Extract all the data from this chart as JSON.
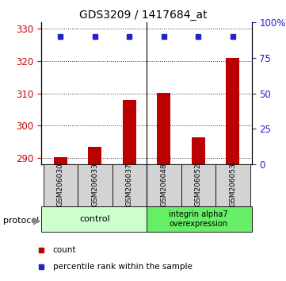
{
  "title": "GDS3209 / 1417684_at",
  "samples": [
    "GSM206030",
    "GSM206033",
    "GSM206037",
    "GSM206048",
    "GSM206052",
    "GSM206053"
  ],
  "counts": [
    290.3,
    293.5,
    308.0,
    310.2,
    296.5,
    321.0
  ],
  "percentile_ranks": [
    90,
    90,
    90,
    90,
    90,
    90
  ],
  "ylim_left": [
    288,
    332
  ],
  "yticks_left": [
    290,
    300,
    310,
    320,
    330
  ],
  "ylim_right": [
    0,
    100
  ],
  "yticks_right": [
    0,
    25,
    50,
    75,
    100
  ],
  "yticklabels_right": [
    "0",
    "25",
    "50",
    "75",
    "100%"
  ],
  "bar_color": "#bb0000",
  "dot_color": "#2222cc",
  "bar_width": 0.4,
  "baseline": 288,
  "left_tick_color": "#cc0000",
  "right_tick_color": "#2222cc",
  "grid_color": "#333333",
  "control_color": "#ccffcc",
  "overexpress_color": "#66ee66",
  "legend_count_label": "count",
  "legend_pct_label": "percentile rank within the sample"
}
